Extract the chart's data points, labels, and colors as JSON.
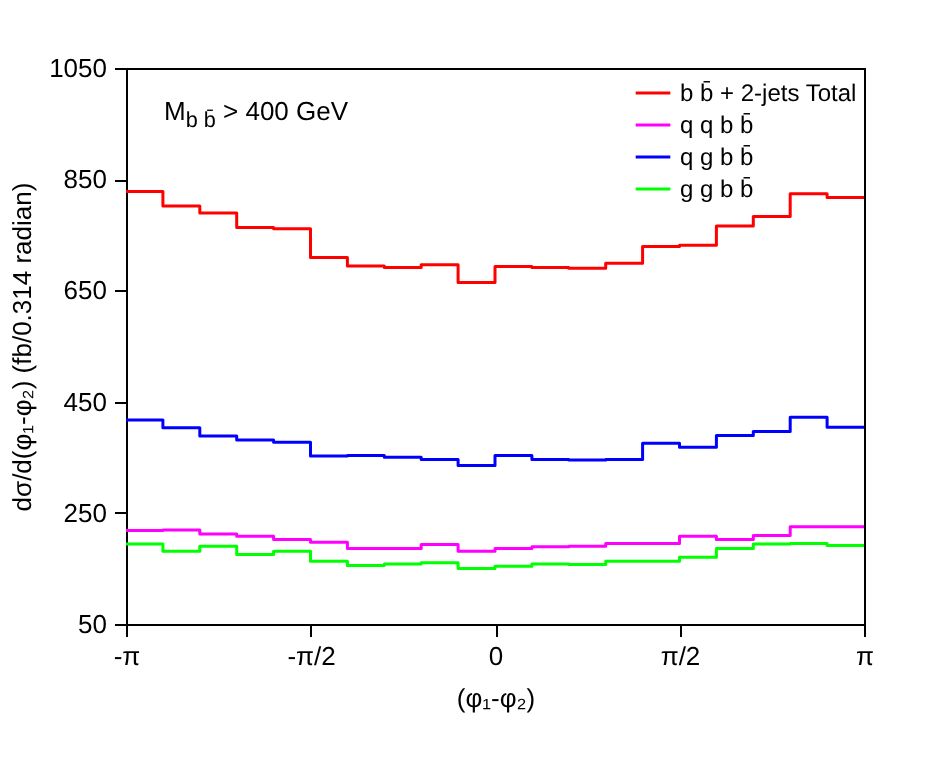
{
  "chart_data": {
    "type": "histogram",
    "xlabel": "(φ₁-φ₂)",
    "ylabel": "dσ/d(φ₁-φ₂) (fb/0.314 radian)",
    "annotations": [
      "M$_{b b̄}$ > 400 GeV"
    ],
    "bins": [
      -3.1416,
      -2.8274,
      -2.5133,
      -2.1991,
      -1.885,
      -1.5708,
      -1.2566,
      -0.9425,
      -0.6283,
      -0.3142,
      0,
      0.3142,
      0.6283,
      0.9425,
      1.2566,
      1.5708,
      1.885,
      2.1991,
      2.5133,
      2.8274,
      3.1416
    ],
    "series": [
      {
        "name": "b b̄ + 2-jets Total",
        "color": "#ff0000",
        "values": [
          828,
          802,
          789,
          763,
          761,
          709,
          694,
          691,
          696,
          664,
          693,
          691,
          690,
          699,
          729,
          731,
          766,
          783,
          824,
          817
        ]
      },
      {
        "name": "q q b b̄",
        "color": "#ff00ff",
        "values": [
          218,
          219,
          212,
          208,
          202,
          197,
          186,
          186,
          193,
          181,
          186,
          189,
          190,
          195,
          195,
          208,
          202,
          209,
          225,
          225
        ]
      },
      {
        "name": "q g b b̄",
        "color": "#0000ff",
        "values": [
          417,
          403,
          388,
          381,
          377,
          352,
          353,
          350,
          346,
          335,
          353,
          346,
          345,
          346,
          375,
          368,
          389,
          396,
          422,
          404
        ]
      },
      {
        "name": "g g b b̄",
        "color": "#00ff00",
        "values": [
          194,
          181,
          190,
          175,
          181,
          163,
          155,
          158,
          160,
          150,
          154,
          158,
          157,
          163,
          163,
          170,
          186,
          194,
          195,
          191
        ]
      }
    ],
    "xlim": [
      -3.1416,
      3.1416
    ],
    "xticks": [
      {
        "value": -3.1416,
        "label": "-π"
      },
      {
        "value": -1.5708,
        "label": "-π/2"
      },
      0,
      {
        "value": 1.5708,
        "label": "π/2"
      },
      {
        "value": 3.1416,
        "label": "π"
      }
    ],
    "ylim": [
      50,
      1050
    ],
    "yticks": [
      50,
      250,
      450,
      650,
      850,
      1050
    ],
    "legend": "top right"
  }
}
